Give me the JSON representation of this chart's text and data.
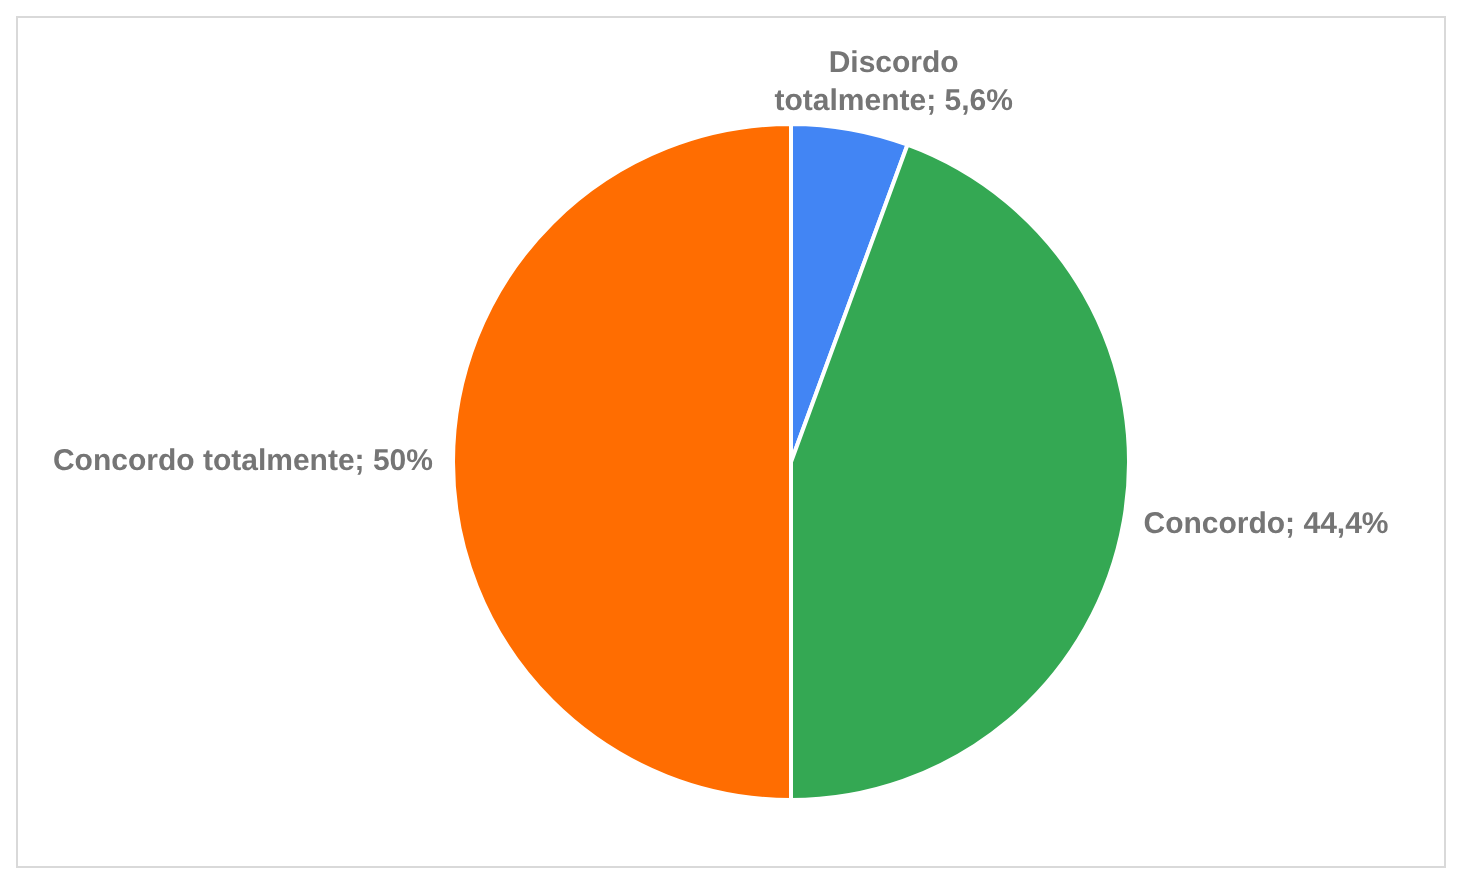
{
  "chart_data": {
    "type": "pie",
    "categories": [
      "Discordo totalmente",
      "Concordo",
      "Concordo totalmente"
    ],
    "values": [
      5.6,
      44.4,
      50
    ],
    "colors": [
      "#4285f4",
      "#34a853",
      "#ff6d01"
    ],
    "value_labels": [
      "5,6%",
      "44,4%",
      "50%"
    ]
  }
}
